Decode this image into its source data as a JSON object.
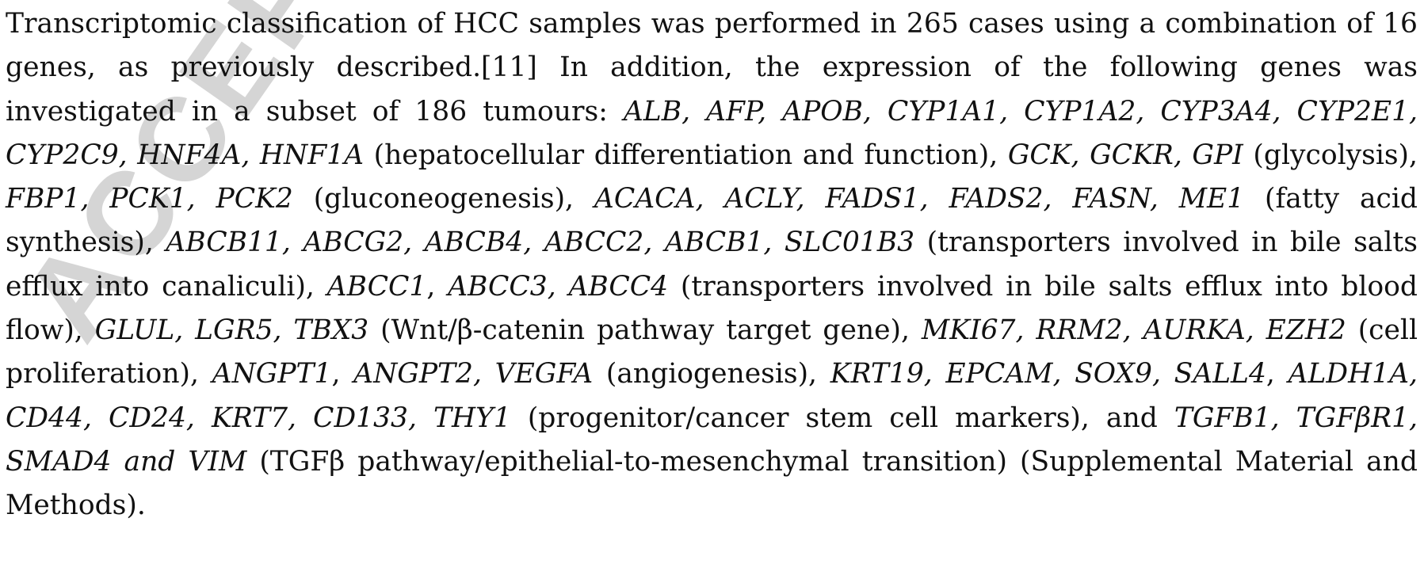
{
  "watermark": "ACCEPTED",
  "paragraph": [
    {
      "t": "Transcriptomic classification of HCC samples was performed in 265 cases using a combination of 16 genes, as previously described.[11] In addition, the expression of the following genes was investigated in a subset of 186 tumours: ",
      "i": false
    },
    {
      "t": "ALB, AFP, APOB, CYP1A1, CYP1A2, CYP3A4, CYP2E1, CYP2C9, HNF4A, HNF1A",
      "i": true
    },
    {
      "t": " (hepatocellular differentiation and function), ",
      "i": false
    },
    {
      "t": "GCK, GCKR, GPI",
      "i": true
    },
    {
      "t": " (glycolysis), ",
      "i": false
    },
    {
      "t": "FBP1, PCK1, PCK2",
      "i": true
    },
    {
      "t": " (gluconeogenesis), ",
      "i": false
    },
    {
      "t": "ACACA, ACLY, FADS1, FADS2, FASN, ME1",
      "i": true
    },
    {
      "t": " (fatty acid synthesis), ",
      "i": false
    },
    {
      "t": "ABCB11, ABCG2, ABCB4, ABCC2, ABCB1, SLC01B3",
      "i": true
    },
    {
      "t": " (transporters involved in bile salts efflux into canaliculi), ",
      "i": false
    },
    {
      "t": "ABCC1",
      "i": true
    },
    {
      "t": ", ",
      "i": false
    },
    {
      "t": "ABCC3, ABCC4",
      "i": true
    },
    {
      "t": " (transporters involved in bile salts efflux into blood flow), ",
      "i": false
    },
    {
      "t": "GLUL, LGR5, TBX3",
      "i": true
    },
    {
      "t": " (Wnt/β-catenin pathway target gene), ",
      "i": false
    },
    {
      "t": "MKI67, RRM2, AURKA, EZH2",
      "i": true
    },
    {
      "t": " (cell proliferation), ",
      "i": false
    },
    {
      "t": "ANGPT1",
      "i": true
    },
    {
      "t": ", ",
      "i": false
    },
    {
      "t": "ANGPT2, VEGFA",
      "i": true
    },
    {
      "t": " (angiogenesis), ",
      "i": false
    },
    {
      "t": "KRT19, EPCAM, SOX9, SALL4",
      "i": true
    },
    {
      "t": ", ",
      "i": false
    },
    {
      "t": "ALDH1A, CD44, CD24, KRT7, CD133, THY1",
      "i": true
    },
    {
      "t": " (progenitor/cancer stem cell markers), and ",
      "i": false
    },
    {
      "t": "TGFB1, TGFβR1, SMAD4 and VIM",
      "i": true
    },
    {
      "t": " (TGFβ pathway/epithelial-to-mesenchymal transition) (Supplemental Material and Methods).",
      "i": false
    }
  ]
}
